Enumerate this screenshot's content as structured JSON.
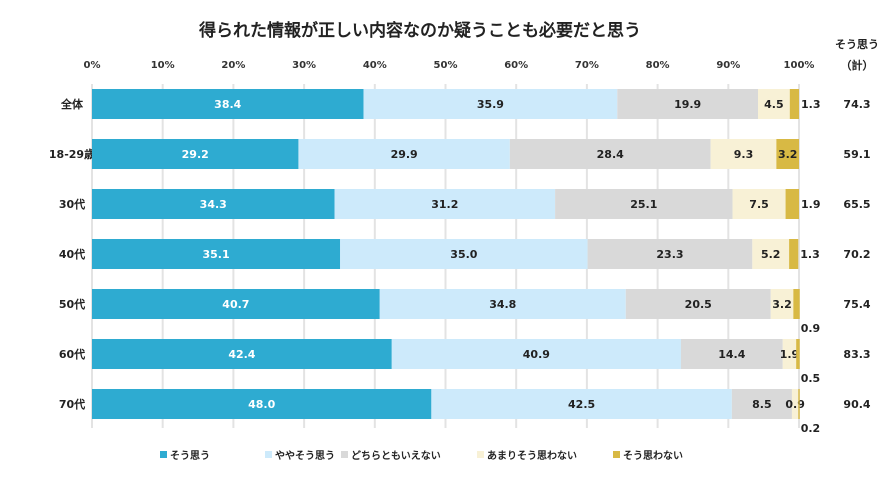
{
  "chart_data": {
    "type": "bar",
    "orientation": "horizontal",
    "stacked": true,
    "title": "得られた情報が正しい内容なのか疑うことも必要だと思う",
    "categories": [
      "全体",
      "18-29歳",
      "30代",
      "40代",
      "50代",
      "60代",
      "70代"
    ],
    "x_ticks": [
      "0%",
      "10%",
      "20%",
      "30%",
      "40%",
      "50%",
      "60%",
      "70%",
      "80%",
      "90%",
      "100%"
    ],
    "xlim": [
      0,
      100
    ],
    "grid": true,
    "legend_position": "bottom",
    "series": [
      {
        "name": "そう思う",
        "color": "#2eabd1",
        "values": [
          38.4,
          29.2,
          34.3,
          35.1,
          40.7,
          42.4,
          48.0
        ]
      },
      {
        "name": "ややそう思う",
        "color": "#cdeafb",
        "values": [
          35.9,
          29.9,
          31.2,
          35.0,
          34.8,
          40.9,
          42.5
        ]
      },
      {
        "name": "どちらともいえない",
        "color": "#d9d9d9",
        "values": [
          19.9,
          28.4,
          25.1,
          23.3,
          20.5,
          14.4,
          8.5
        ]
      },
      {
        "name": "あまりそう思わない",
        "color": "#f8f1d6",
        "values": [
          4.5,
          9.3,
          7.5,
          5.2,
          3.2,
          1.9,
          0.9
        ]
      },
      {
        "name": "そう思わない",
        "color": "#d8b944",
        "values": [
          1.3,
          3.2,
          1.9,
          1.3,
          0.9,
          0.5,
          0.2
        ]
      }
    ],
    "total_column": {
      "header_line1": "そう思う",
      "header_line2": "（計）",
      "values": [
        "74.3",
        "59.1",
        "65.5",
        "70.2",
        "75.4",
        "83.3",
        "90.4"
      ]
    }
  }
}
